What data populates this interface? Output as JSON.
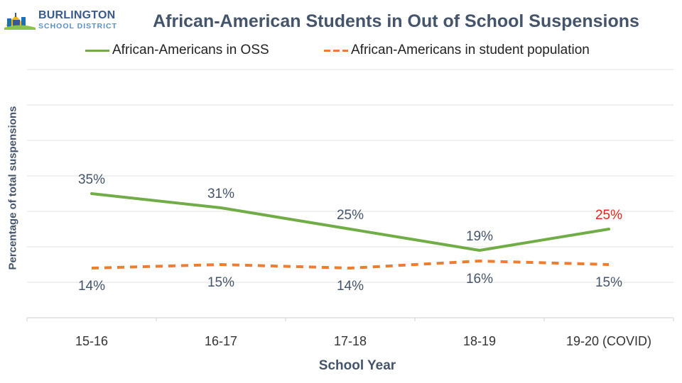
{
  "logo": {
    "name": "BURLINGTON",
    "subtitle": "SCHOOL DISTRICT"
  },
  "colors": {
    "oss_line": "#70ad47",
    "population_line": "#ed7d31",
    "highlight_label": "#e8251b",
    "text": "#44546a"
  },
  "chart_data": {
    "type": "line",
    "title": "African-American Students in Out of School Suspensions",
    "xlabel": "School Year",
    "ylabel": "Percentage of total suspensions",
    "categories": [
      "15-16",
      "16-17",
      "17-18",
      "18-19",
      "19-20 (COVID)"
    ],
    "ylim": [
      0,
      70
    ],
    "grid": true,
    "legend": "top",
    "series": [
      {
        "name": "African-Americans in OSS",
        "style": "solid",
        "values": [
          35,
          31,
          25,
          19,
          25
        ],
        "labels": [
          "35%",
          "31%",
          "25%",
          "19%",
          "25%"
        ],
        "highlight_index": 4
      },
      {
        "name": "African-Americans in student population",
        "style": "dashed",
        "values": [
          14,
          15,
          14,
          16,
          15
        ],
        "labels": [
          "14%",
          "15%",
          "14%",
          "16%",
          "15%"
        ]
      }
    ]
  }
}
